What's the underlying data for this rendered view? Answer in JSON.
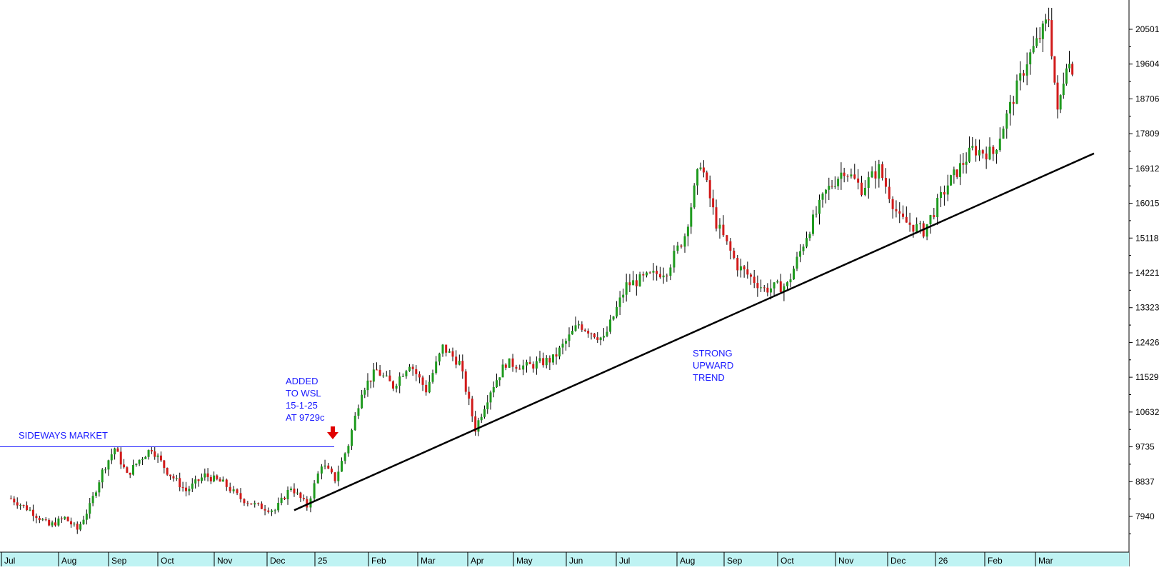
{
  "chart_data": {
    "type": "candlestick",
    "y_ticks": [
      "20501",
      "19604",
      "18706",
      "17809",
      "16912",
      "16015",
      "15118",
      "14221",
      "13323",
      "12426",
      "11529",
      "10632",
      "9735",
      "8837",
      "7940"
    ],
    "ylim": [
      7400,
      21300
    ],
    "x_labels": [
      "Jul",
      "Aug",
      "Sep",
      "Oct",
      "Nov",
      "Dec",
      "25",
      "Feb",
      "Mar",
      "Apr",
      "May",
      "Jun",
      "Jul",
      "Aug",
      "Sep",
      "Oct",
      "Nov",
      "Dec",
      "26",
      "Feb",
      "Mar"
    ],
    "grid": false,
    "annotations": {
      "sideways": "SIDEWAYS MARKET",
      "added": [
        "ADDED",
        "TO WSL",
        "15-1-25",
        "AT 9729c"
      ],
      "trend": [
        "STRONG",
        "UPWARD",
        "TREND"
      ]
    },
    "resistance_level": 9735,
    "trendline": {
      "from": {
        "label": "Dec",
        "value": 8100
      },
      "to": {
        "label": "Mar",
        "value": 17300
      }
    },
    "price_path": [
      [
        "Jul",
        8400
      ],
      [
        "Jul",
        8100
      ],
      [
        "Jul",
        7700
      ],
      [
        "Aug",
        7900
      ],
      [
        "Aug",
        7600
      ],
      [
        "Aug",
        8200
      ],
      [
        "Aug",
        9100
      ],
      [
        "Sep",
        9700
      ],
      [
        "Sep",
        9000
      ],
      [
        "Sep",
        9400
      ],
      [
        "Sep",
        9700
      ],
      [
        "Oct",
        9100
      ],
      [
        "Oct",
        8600
      ],
      [
        "Oct",
        9000
      ],
      [
        "Nov",
        8800
      ],
      [
        "Nov",
        8400
      ],
      [
        "Nov",
        8200
      ],
      [
        "Dec",
        8100
      ],
      [
        "Dec",
        8700
      ],
      [
        "Dec",
        8200
      ],
      [
        "25",
        9300
      ],
      [
        "25",
        8900
      ],
      [
        "25",
        9800
      ],
      [
        "25",
        11200
      ],
      [
        "Feb",
        11700
      ],
      [
        "Feb",
        11300
      ],
      [
        "Feb",
        11900
      ],
      [
        "Mar",
        11200
      ],
      [
        "Mar",
        12300
      ],
      [
        "Mar",
        11900
      ],
      [
        "Apr",
        10200
      ],
      [
        "Apr",
        11200
      ],
      [
        "Apr",
        11900
      ],
      [
        "May",
        11800
      ],
      [
        "May",
        12000
      ],
      [
        "Jun",
        12900
      ],
      [
        "Jun",
        12500
      ],
      [
        "Jul",
        13900
      ],
      [
        "Jul",
        14100
      ],
      [
        "Jul",
        14300
      ],
      [
        "Aug",
        15200
      ],
      [
        "Aug",
        17100
      ],
      [
        "Aug",
        15500
      ],
      [
        "Sep",
        14400
      ],
      [
        "Sep",
        13800
      ],
      [
        "Oct",
        13900
      ],
      [
        "Oct",
        15200
      ],
      [
        "Oct",
        16300
      ],
      [
        "Nov",
        16900
      ],
      [
        "Nov",
        16400
      ],
      [
        "Nov",
        16900
      ],
      [
        "Dec",
        15600
      ],
      [
        "Dec",
        15300
      ],
      [
        "26",
        16500
      ],
      [
        "26",
        17400
      ],
      [
        "Feb",
        17300
      ],
      [
        "Feb",
        18500
      ],
      [
        "Feb",
        19700
      ],
      [
        "Mar",
        20300
      ],
      [
        "Mar",
        20800
      ],
      [
        "Mar",
        18300
      ],
      [
        "Mar",
        19700
      ],
      [
        "Mar",
        19400
      ]
    ]
  }
}
